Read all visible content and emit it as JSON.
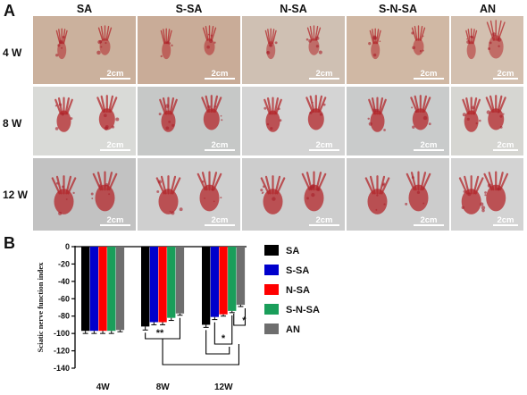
{
  "panel_a": {
    "letter": "A",
    "columns": [
      "SA",
      "S-SA",
      "N-SA",
      "S-N-SA",
      "AN"
    ],
    "rows": [
      "4 W",
      "8 W",
      "12 W"
    ],
    "scale_bar_label": "2cm"
  },
  "panel_b": {
    "letter": "B"
  },
  "chart_data": {
    "type": "bar",
    "categories": [
      "4W",
      "8W",
      "12W"
    ],
    "series": [
      {
        "name": "SA",
        "color": "#000000",
        "values": [
          -97,
          -92,
          -90
        ],
        "errors": [
          3,
          4,
          3
        ]
      },
      {
        "name": "S-SA",
        "color": "#0000cc",
        "values": [
          -97,
          -87,
          -81
        ],
        "errors": [
          3,
          3,
          3
        ]
      },
      {
        "name": "N-SA",
        "color": "#ff0000",
        "values": [
          -97,
          -87,
          -78
        ],
        "errors": [
          3,
          3,
          2
        ]
      },
      {
        "name": "S-N-SA",
        "color": "#1a9e5a",
        "values": [
          -97,
          -82,
          -74
        ],
        "errors": [
          3,
          3,
          2
        ]
      },
      {
        "name": "AN",
        "color": "#6e6e6e",
        "values": [
          -96,
          -77,
          -67
        ],
        "errors": [
          2,
          2,
          2
        ]
      }
    ],
    "ylabel": "Sciatic nerve function index",
    "xlabel": "",
    "ylim": [
      -140,
      0
    ],
    "yticks": [
      0,
      -20,
      -40,
      -60,
      -80,
      -100,
      -120,
      -140
    ],
    "significance": [
      "**",
      "*",
      "*"
    ],
    "legend": "right"
  }
}
